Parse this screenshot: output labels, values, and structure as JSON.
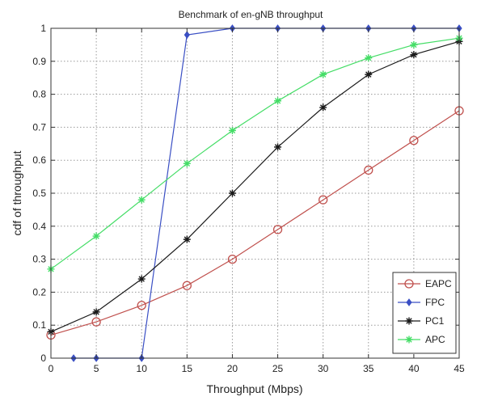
{
  "chart_data": {
    "type": "line",
    "title": "Benchmark of en-gNB throughput",
    "xlabel": "Throughput (Mbps)",
    "ylabel": "cdf of throughput",
    "xlim": [
      0,
      45
    ],
    "ylim": [
      0,
      1
    ],
    "xticks": [
      0,
      5,
      10,
      15,
      20,
      25,
      30,
      35,
      40,
      45
    ],
    "yticks": [
      0,
      0.1,
      0.2,
      0.3,
      0.4,
      0.5,
      0.6,
      0.7,
      0.8,
      0.9,
      1
    ],
    "xtick_labels": [
      "0",
      "5",
      "10",
      "15",
      "20",
      "25",
      "30",
      "35",
      "40",
      "45"
    ],
    "ytick_labels": [
      "0",
      "0.1",
      "0.2",
      "0.3",
      "0.4",
      "0.5",
      "0.6",
      "0.7",
      "0.8",
      "0.9",
      "1"
    ],
    "grid": true,
    "legend_position": "bottom-right",
    "series": [
      {
        "name": "EAPC",
        "color": "#c0504d",
        "marker": "circle",
        "x": [
          0,
          5,
          10,
          15,
          20,
          25,
          30,
          35,
          40,
          45
        ],
        "y": [
          0.07,
          0.11,
          0.16,
          0.22,
          0.3,
          0.39,
          0.48,
          0.57,
          0.66,
          0.75
        ]
      },
      {
        "name": "FPC",
        "color": "#3a4fc4",
        "marker": "diamond",
        "x": [
          2.5,
          5,
          10,
          15,
          20,
          25,
          30,
          35,
          40,
          45
        ],
        "y": [
          0,
          0,
          0,
          0.98,
          1,
          1,
          1,
          1,
          1,
          1
        ]
      },
      {
        "name": "PC1",
        "color": "#1a1a1a",
        "marker": "star",
        "x": [
          0,
          5,
          10,
          15,
          20,
          25,
          30,
          35,
          40,
          45
        ],
        "y": [
          0.08,
          0.14,
          0.24,
          0.36,
          0.5,
          0.64,
          0.76,
          0.86,
          0.92,
          0.96
        ]
      },
      {
        "name": "APC",
        "color": "#44dd66",
        "marker": "star",
        "x": [
          0,
          5,
          10,
          15,
          20,
          25,
          30,
          35,
          40,
          45
        ],
        "y": [
          0.27,
          0.37,
          0.48,
          0.59,
          0.69,
          0.78,
          0.86,
          0.91,
          0.95,
          0.97
        ]
      }
    ]
  }
}
